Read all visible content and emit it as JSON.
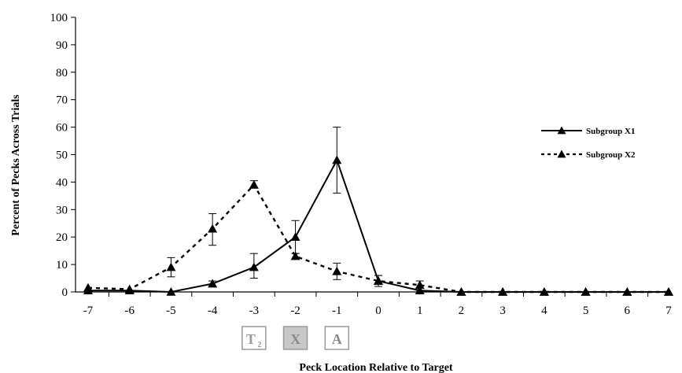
{
  "chart_data": {
    "type": "line",
    "title": "",
    "xlabel": "Peck Location Relative to Target",
    "ylabel": "Percent of Pecks Across Trials",
    "x": [
      -7,
      -6,
      -5,
      -4,
      -3,
      -2,
      -1,
      0,
      1,
      2,
      3,
      4,
      5,
      6,
      7
    ],
    "x_tick_labels": [
      "-7",
      "-6",
      "-5",
      "-4",
      "-3",
      "-2",
      "-1",
      "0",
      "1",
      "2",
      "3",
      "4",
      "5",
      "6",
      "7"
    ],
    "ylim": [
      0,
      100
    ],
    "y_ticks": [
      0,
      10,
      20,
      30,
      40,
      50,
      60,
      70,
      80,
      90,
      100
    ],
    "y_tick_labels": [
      "0",
      "10",
      "20",
      "30",
      "40",
      "50",
      "60",
      "70",
      "80",
      "90",
      "100"
    ],
    "grid": false,
    "legend_position": "right",
    "series": [
      {
        "name": "Subgroup X1",
        "line_style": "solid",
        "marker": "triangle",
        "color": "#000000",
        "values": [
          0.5,
          0.5,
          0,
          3,
          9,
          20,
          48,
          4,
          0.5,
          0,
          0,
          0,
          0,
          0,
          0
        ],
        "error_low": [
          null,
          null,
          null,
          2,
          5,
          14,
          36,
          3,
          null,
          null,
          null,
          null,
          null,
          null,
          null
        ],
        "error_high": [
          null,
          null,
          null,
          4,
          14,
          26,
          60,
          6,
          null,
          null,
          null,
          null,
          null,
          null,
          null
        ]
      },
      {
        "name": "Subgroup X2",
        "line_style": "dashed",
        "marker": "triangle",
        "color": "#000000",
        "values": [
          1.5,
          1,
          9,
          23,
          39,
          13,
          7.5,
          4,
          2.5,
          0,
          0,
          0,
          0,
          0,
          0
        ],
        "error_low": [
          null,
          null,
          5.5,
          17,
          38,
          12,
          4.5,
          2,
          0.5,
          null,
          null,
          null,
          null,
          null,
          null
        ],
        "error_high": [
          null,
          null,
          12.5,
          28.5,
          40.5,
          14,
          10.5,
          6,
          4,
          null,
          null,
          null,
          null,
          null,
          null
        ]
      }
    ],
    "position_markers": [
      {
        "label": "T",
        "subscript": "2",
        "at_x": -3,
        "fill": "#ffffff",
        "text_color": "#9a9a9a"
      },
      {
        "label": "X",
        "subscript": "",
        "at_x": -2,
        "fill": "#c8c8c8",
        "text_color": "#8a8a8a"
      },
      {
        "label": "A",
        "subscript": "",
        "at_x": -1,
        "fill": "#ffffff",
        "text_color": "#8a8a8a"
      }
    ]
  }
}
